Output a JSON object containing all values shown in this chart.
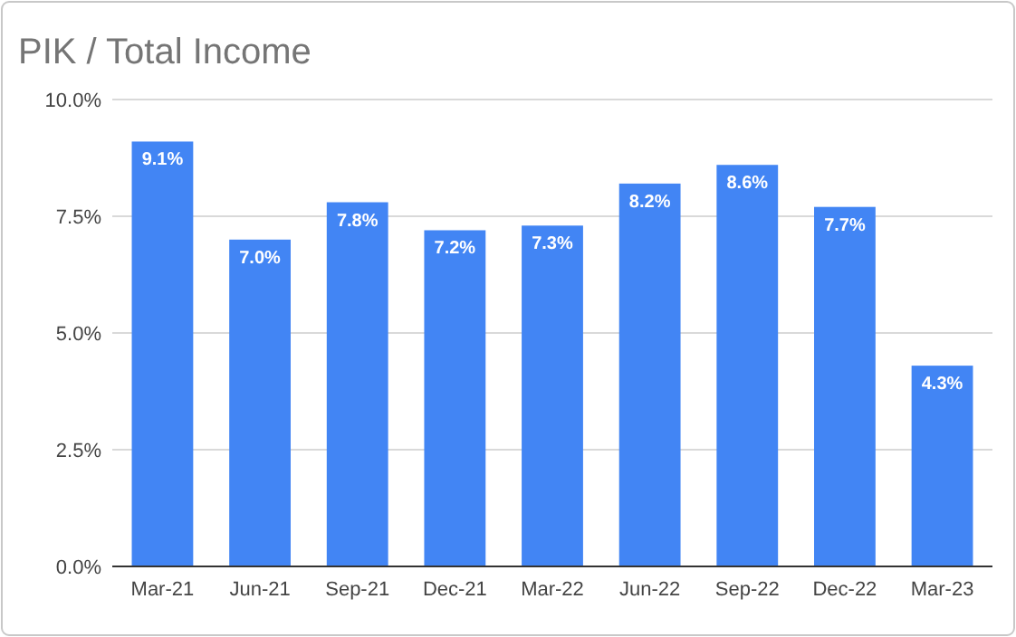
{
  "chart_data": {
    "type": "bar",
    "title": "PIK / Total Income",
    "categories": [
      "Mar-21",
      "Jun-21",
      "Sep-21",
      "Dec-21",
      "Mar-22",
      "Jun-22",
      "Sep-22",
      "Dec-22",
      "Mar-23"
    ],
    "values": [
      9.1,
      7.0,
      7.8,
      7.2,
      7.3,
      8.2,
      8.6,
      7.7,
      4.3
    ],
    "value_labels": [
      "9.1%",
      "7.0%",
      "7.8%",
      "7.2%",
      "7.3%",
      "8.2%",
      "8.6%",
      "7.7%",
      "4.3%"
    ],
    "color": "#4285f4",
    "ylim": [
      0,
      10
    ],
    "yticks": [
      {
        "value": 0,
        "label": "0.0%"
      },
      {
        "value": 2.5,
        "label": "2.5%"
      },
      {
        "value": 5,
        "label": "5.0%"
      },
      {
        "value": 7.5,
        "label": "7.5%"
      },
      {
        "value": 10,
        "label": "10.0%"
      }
    ],
    "grid": "y"
  }
}
